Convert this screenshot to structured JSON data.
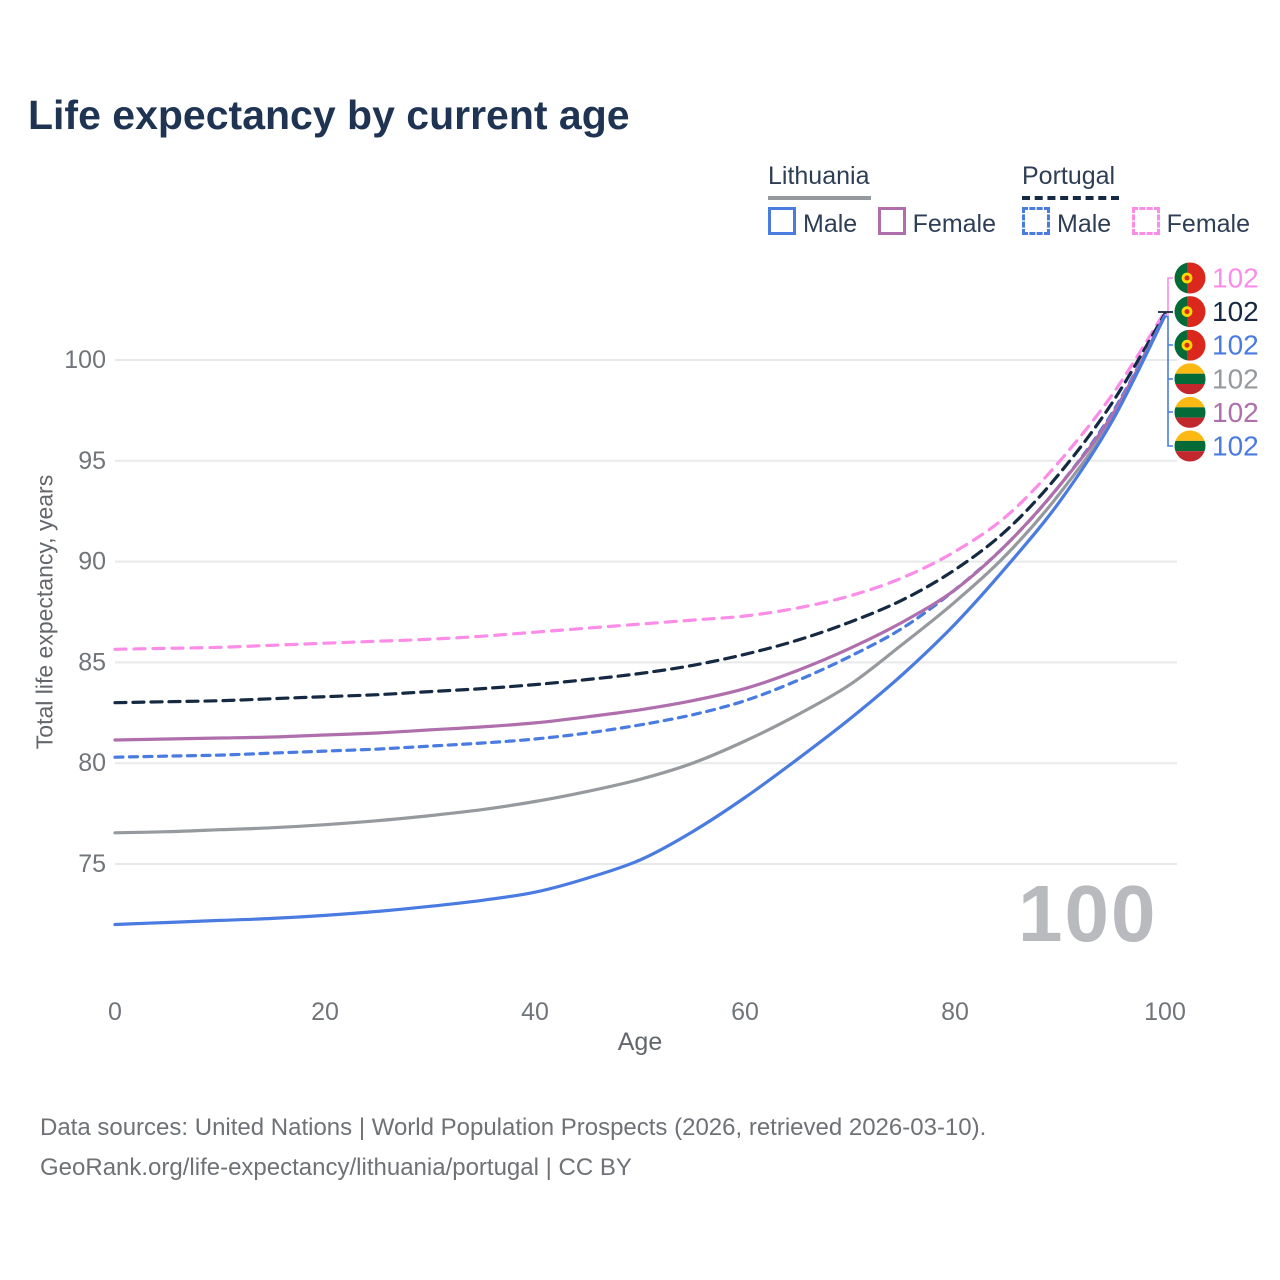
{
  "title": "Life expectancy by current age",
  "legend": {
    "groups": [
      {
        "country": "Lithuania",
        "line_style": "solid",
        "items": [
          {
            "label": "Male",
            "color": "#4a7be0"
          },
          {
            "label": "Female",
            "color": "#af6fad"
          }
        ]
      },
      {
        "country": "Portugal",
        "line_style": "dashed",
        "items": [
          {
            "label": "Male",
            "color": "#4a7be0"
          },
          {
            "label": "Female",
            "color": "#fb8ce8"
          }
        ]
      }
    ]
  },
  "footer": {
    "line1": "Data sources: United Nations | World Population Prospects (2026, retrieved 2026-03-10).",
    "line2": "GeoRank.org/life-expectancy/lithuania/portugal | CC BY"
  },
  "chart_data": {
    "type": "line",
    "title": "Life expectancy by current age",
    "xlabel": "Age",
    "ylabel": "Total life expectancy, years",
    "x_ticks": [
      0,
      20,
      40,
      60,
      80,
      100
    ],
    "y_ticks": [
      75,
      80,
      85,
      90,
      95,
      100
    ],
    "xlim": [
      0,
      100
    ],
    "ylim": [
      71,
      103
    ],
    "grid": "horizontal-only",
    "age_counter": "100",
    "grid_color": "#e8e9ea",
    "tick_color": "#71757a",
    "x": [
      0,
      5,
      10,
      15,
      20,
      25,
      30,
      35,
      40,
      45,
      50,
      55,
      60,
      65,
      70,
      75,
      80,
      85,
      90,
      95,
      100
    ],
    "series": [
      {
        "name": "Portugal Female",
        "country": "Portugal",
        "sex": "Female",
        "color": "#fb8ce8",
        "dash": "11 8",
        "values": [
          85.65,
          85.7,
          85.75,
          85.85,
          85.95,
          86.05,
          86.15,
          86.3,
          86.5,
          86.7,
          86.9,
          87.1,
          87.3,
          87.7,
          88.3,
          89.2,
          90.5,
          92.3,
          95.0,
          98.3,
          102.4
        ]
      },
      {
        "name": "Portugal Both sexes",
        "country": "Portugal",
        "sex": "Both sexes",
        "color": "#152a42",
        "dash": "11 7",
        "values": [
          83.0,
          83.05,
          83.1,
          83.2,
          83.3,
          83.4,
          83.55,
          83.7,
          83.9,
          84.15,
          84.45,
          84.85,
          85.4,
          86.1,
          87.0,
          88.1,
          89.6,
          91.6,
          94.4,
          97.9,
          102.3
        ]
      },
      {
        "name": "Portugal Male",
        "country": "Portugal",
        "sex": "Male",
        "color": "#4a7be0",
        "dash": "8 6.5",
        "values": [
          80.3,
          80.35,
          80.4,
          80.5,
          80.6,
          80.7,
          80.85,
          81.0,
          81.2,
          81.5,
          81.9,
          82.4,
          83.1,
          84.1,
          85.3,
          86.7,
          88.6,
          90.9,
          93.8,
          97.4,
          102.2
        ]
      },
      {
        "name": "Lithuania Both sexes",
        "country": "Lithuania",
        "sex": "Both sexes",
        "color": "#96999d",
        "dash": null,
        "values": [
          76.55,
          76.6,
          76.7,
          76.8,
          76.95,
          77.15,
          77.4,
          77.7,
          78.1,
          78.6,
          79.2,
          80.0,
          81.1,
          82.4,
          83.9,
          85.9,
          88.0,
          90.4,
          93.4,
          97.1,
          102.2
        ]
      },
      {
        "name": "Lithuania Female",
        "country": "Lithuania",
        "sex": "Female",
        "color": "#af6fad",
        "dash": null,
        "values": [
          81.15,
          81.2,
          81.25,
          81.3,
          81.4,
          81.5,
          81.65,
          81.8,
          82.0,
          82.3,
          82.65,
          83.1,
          83.7,
          84.6,
          85.7,
          87.0,
          88.6,
          90.9,
          93.8,
          97.3,
          102.2
        ]
      },
      {
        "name": "Lithuania Male",
        "country": "Lithuania",
        "sex": "Male",
        "color": "#4a7be0",
        "dash": null,
        "values": [
          72.0,
          72.1,
          72.2,
          72.3,
          72.45,
          72.65,
          72.9,
          73.2,
          73.6,
          74.3,
          75.2,
          76.6,
          78.3,
          80.2,
          82.2,
          84.4,
          86.9,
          89.8,
          93.0,
          97.0,
          102.2
        ]
      }
    ],
    "end_labels": [
      {
        "country": "Portugal",
        "series": "Portugal Female",
        "value": "102",
        "color": "#fb8ce8"
      },
      {
        "country": "Portugal",
        "series": "Portugal Both sexes",
        "value": "102",
        "color": "#152a42"
      },
      {
        "country": "Portugal",
        "series": "Portugal Male",
        "value": "102",
        "color": "#4a7be0"
      },
      {
        "country": "Lithuania",
        "series": "Lithuania Both sexes",
        "value": "102",
        "color": "#96999d"
      },
      {
        "country": "Lithuania",
        "series": "Lithuania Female",
        "value": "102",
        "color": "#af6fad"
      },
      {
        "country": "Lithuania",
        "series": "Lithuania Male",
        "value": "102",
        "color": "#4a7be0"
      }
    ],
    "flag_colors": {
      "lithuania": [
        "#fdb913",
        "#046a38",
        "#c1272d"
      ],
      "portugal": {
        "green": "#046a38",
        "red": "#da291c",
        "emblem_yellow": "#ffd900"
      }
    }
  }
}
